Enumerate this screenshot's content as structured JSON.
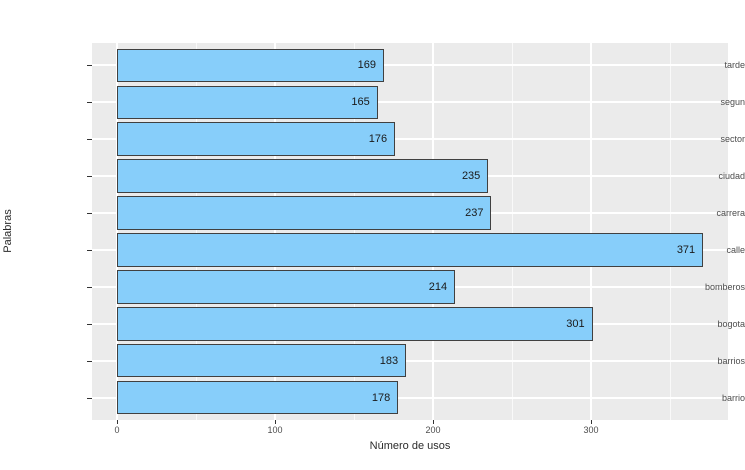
{
  "chart_data": {
    "type": "bar",
    "orientation": "horizontal",
    "title": "",
    "categories": [
      "tarde",
      "segun",
      "sector",
      "ciudad",
      "carrera",
      "calle",
      "bomberos",
      "bogota",
      "barrios",
      "barrio"
    ],
    "values": [
      169,
      165,
      176,
      235,
      237,
      371,
      214,
      301,
      183,
      178
    ],
    "xlabel": "Número de usos",
    "ylabel": "Palabras",
    "xlim": [
      -16,
      389
    ],
    "x_major_ticks": [
      0,
      100,
      200,
      300
    ],
    "x_minor_ticks": [
      50,
      150,
      250,
      350
    ],
    "grid": true,
    "legend_position": "none",
    "value_label_position": "inside-end",
    "colors": {
      "bar_fill": "#87CEFA",
      "bar_border": "#404040",
      "panel_bg": "#EBEBEB",
      "grid_major": "#FFFFFF",
      "axis_text": "#4D4D4D",
      "axis_title": "#2B2B2B",
      "value_label": "#1A1A1A",
      "background": "#FFFFFF"
    }
  }
}
